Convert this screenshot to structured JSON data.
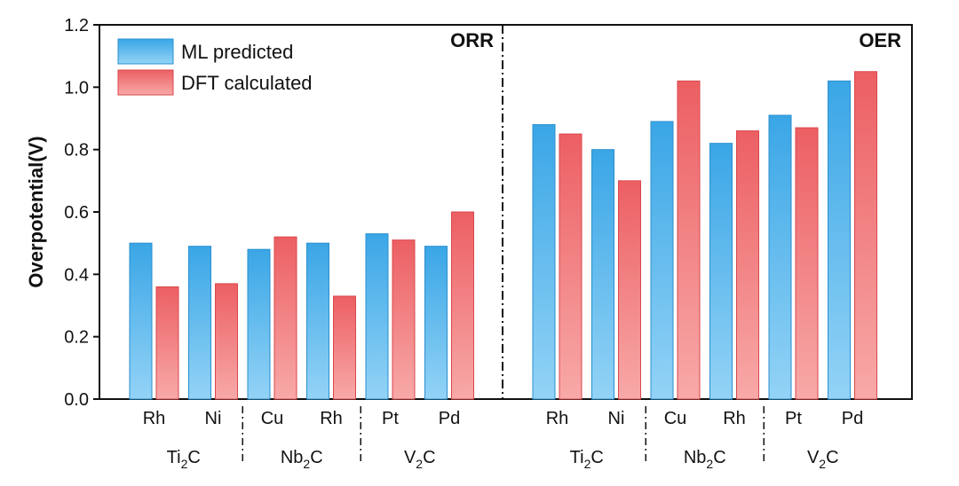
{
  "chart_data": {
    "type": "bar",
    "ylabel": "Overpotential(V)",
    "ylim": [
      0.0,
      1.2
    ],
    "yticks": [
      "0.0",
      "0.2",
      "0.4",
      "0.6",
      "0.8",
      "1.0",
      "1.2"
    ],
    "legend": [
      {
        "name": "ML predicted",
        "color": "#4ab4ec"
      },
      {
        "name": "DFT calculated",
        "color": "#ef6a6c"
      }
    ],
    "panels": [
      {
        "name": "ORR",
        "categories": [
          "Rh",
          "Ni",
          "Cu",
          "Rh",
          "Pt",
          "Pd"
        ],
        "groups": [
          {
            "label": "Ti",
            "sub": "2",
            "suffix": "C"
          },
          {
            "label": "Nb",
            "sub": "2",
            "suffix": "C"
          },
          {
            "label": "V",
            "sub": "2",
            "suffix": "C"
          }
        ],
        "series": [
          {
            "name": "ML predicted",
            "values": [
              0.5,
              0.49,
              0.48,
              0.5,
              0.53,
              0.49
            ]
          },
          {
            "name": "DFT calculated",
            "values": [
              0.36,
              0.37,
              0.52,
              0.33,
              0.51,
              0.6
            ]
          }
        ]
      },
      {
        "name": "OER",
        "categories": [
          "Rh",
          "Ni",
          "Cu",
          "Rh",
          "Pt",
          "Pd"
        ],
        "groups": [
          {
            "label": "Ti",
            "sub": "2",
            "suffix": "C"
          },
          {
            "label": "Nb",
            "sub": "2",
            "suffix": "C"
          },
          {
            "label": "V",
            "sub": "2",
            "suffix": "C"
          }
        ],
        "series": [
          {
            "name": "ML predicted",
            "values": [
              0.88,
              0.8,
              0.89,
              0.82,
              0.91,
              1.02
            ]
          },
          {
            "name": "DFT calculated",
            "values": [
              0.85,
              0.7,
              1.02,
              0.86,
              0.87,
              1.05
            ]
          }
        ]
      }
    ]
  }
}
